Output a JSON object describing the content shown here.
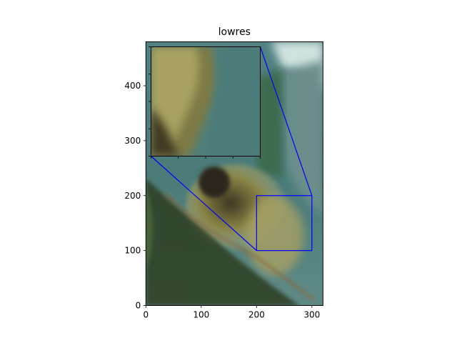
{
  "chart_data": {
    "type": "image",
    "title": "lowres",
    "xlabel": "",
    "ylabel": "",
    "xlim": [
      0,
      320
    ],
    "ylim": [
      0,
      480
    ],
    "xticks": [
      0,
      100,
      200,
      300
    ],
    "yticks": [
      0,
      100,
      200,
      300,
      400
    ],
    "inset": {
      "zoom_region": {
        "x": [
          200,
          300
        ],
        "y": [
          100,
          200
        ]
      },
      "connector_color": "#0000ff"
    }
  }
}
